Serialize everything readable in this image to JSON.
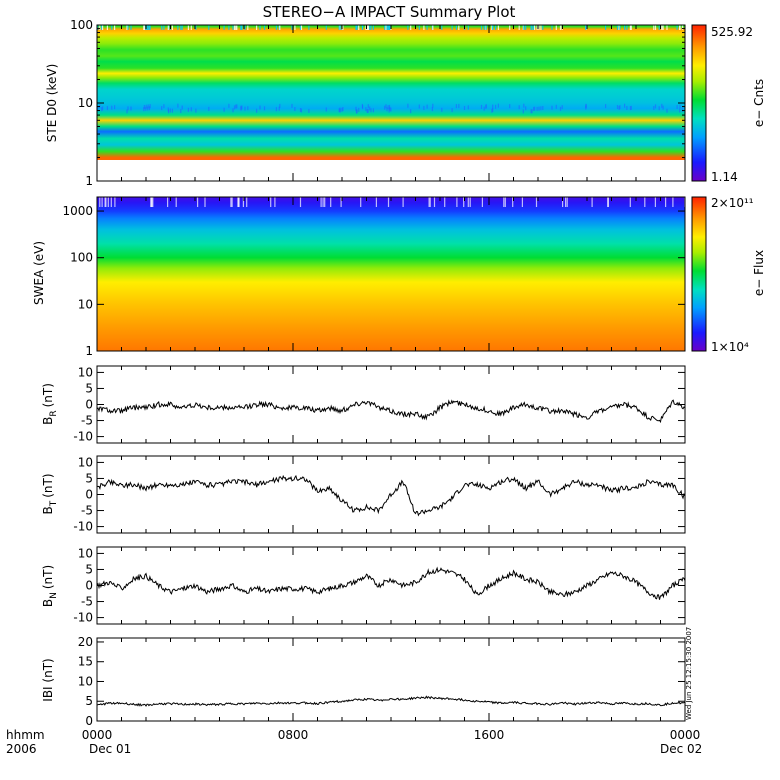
{
  "chart_data": {
    "type": "line",
    "title": "STEREO−A IMPACT Summary Plot",
    "x": {
      "unit": "hours since 2006 Dec 01 00:00",
      "range": [
        0,
        24
      ],
      "ticks": [
        0,
        8,
        16,
        24
      ],
      "tick_labels": [
        "0000",
        "0800",
        "1600",
        "0000"
      ],
      "date_labels": [
        "Dec 01",
        "Dec 02"
      ],
      "corner_labels": [
        "hhmm",
        "2006"
      ]
    },
    "stamp": "Wed Jun 25 12:15:30 2007",
    "panels": [
      {
        "id": "ste",
        "type": "heatmap",
        "ylabel": "STE D0 (keV)",
        "yscale": "log",
        "ylim": [
          1,
          100
        ],
        "yticks": [
          1,
          10,
          100
        ],
        "ytick_labels": [
          "1",
          "10",
          "100"
        ],
        "colorbar": {
          "label": "e− Cnts",
          "max": "525.92",
          "min": "1.14"
        },
        "bands_keV": [
          {
            "energy": 2.0,
            "level": 0.92
          },
          {
            "energy": 2.4,
            "level": 0.55
          },
          {
            "energy": 2.9,
            "level": 0.35
          },
          {
            "energy": 3.5,
            "level": 0.42
          },
          {
            "energy": 4.3,
            "level": 0.22
          },
          {
            "energy": 5.0,
            "level": 0.45
          },
          {
            "energy": 6.0,
            "level": 0.78
          },
          {
            "energy": 7.0,
            "level": 0.45
          },
          {
            "energy": 8.5,
            "level": 0.3
          },
          {
            "energy": 10.0,
            "level": 0.34
          },
          {
            "energy": 12.0,
            "level": 0.36
          },
          {
            "energy": 15.0,
            "level": 0.38
          },
          {
            "energy": 18.0,
            "level": 0.48
          },
          {
            "energy": 21.0,
            "level": 0.62
          },
          {
            "energy": 24.0,
            "level": 0.74
          },
          {
            "energy": 28.0,
            "level": 0.55
          },
          {
            "energy": 34.0,
            "level": 0.5
          },
          {
            "energy": 40.0,
            "level": 0.58
          },
          {
            "energy": 48.0,
            "level": 0.55
          },
          {
            "energy": 58.0,
            "level": 0.62
          },
          {
            "energy": 68.0,
            "level": 0.66
          },
          {
            "energy": 78.0,
            "level": 0.78
          },
          {
            "energy": 88.0,
            "level": 0.84
          },
          {
            "energy": 96.0,
            "level": 0.55
          }
        ]
      },
      {
        "id": "swea",
        "type": "heatmap",
        "ylabel": "SWEA (eV)",
        "yscale": "log",
        "ylim": [
          1,
          2000
        ],
        "yticks": [
          1,
          10,
          100,
          1000
        ],
        "ytick_labels": [
          "1",
          "10",
          "100",
          "1000"
        ],
        "colorbar": {
          "label": "e− Flux",
          "max": "2×10¹¹",
          "min": "1×10⁴"
        },
        "profile_eV": [
          {
            "energy": 1,
            "level": 0.9
          },
          {
            "energy": 3,
            "level": 0.86
          },
          {
            "energy": 10,
            "level": 0.8
          },
          {
            "energy": 30,
            "level": 0.74
          },
          {
            "energy": 60,
            "level": 0.62
          },
          {
            "energy": 100,
            "level": 0.52
          },
          {
            "energy": 200,
            "level": 0.42
          },
          {
            "energy": 400,
            "level": 0.34
          },
          {
            "energy": 700,
            "level": 0.24
          },
          {
            "energy": 1000,
            "level": 0.16
          },
          {
            "energy": 1500,
            "level": 0.1
          },
          {
            "energy": 2000,
            "level": 0.06
          }
        ]
      },
      {
        "id": "br",
        "type": "line",
        "ylabel": "B",
        "ylabel_sub": "R",
        "ylabel_unit": "(nT)",
        "ylim": [
          -12,
          12
        ],
        "yticks": [
          10,
          5,
          0,
          -5,
          -10
        ],
        "series": [
          {
            "x": [
              0,
              0.5,
              1,
              1.5,
              2,
              2.5,
              3,
              3.5,
              4,
              4.5,
              5,
              5.5,
              6,
              6.5,
              7,
              7.5,
              8,
              8.5,
              9,
              9.5,
              10,
              10.5,
              11,
              11.5,
              12,
              12.5,
              13,
              13.5,
              14,
              14.5,
              15,
              15.5,
              16,
              16.5,
              17,
              17.5,
              18,
              18.5,
              19,
              19.5,
              20,
              20.5,
              21,
              21.5,
              22,
              22.5,
              23,
              23.5,
              24
            ],
            "y": [
              -1,
              -2,
              -2,
              -1,
              -1,
              0,
              0,
              -1,
              0,
              -1,
              -1,
              -1,
              -1,
              0,
              0,
              -1,
              -1,
              -1,
              -2,
              -1,
              -2,
              0,
              1,
              -1,
              -2,
              -3,
              -3,
              -4,
              -1,
              1,
              0,
              -1,
              -2,
              -3,
              -1,
              0,
              -1,
              -2,
              -2,
              -3,
              -4,
              -2,
              -1,
              0,
              -1,
              -4,
              -5,
              1,
              -1
            ]
          }
        ]
      },
      {
        "id": "bt",
        "type": "line",
        "ylabel": "B",
        "ylabel_sub": "T",
        "ylabel_unit": "(nT)",
        "ylim": [
          -12,
          12
        ],
        "yticks": [
          10,
          5,
          0,
          -5,
          -10
        ],
        "series": [
          {
            "x": [
              0,
              0.5,
              1,
              1.5,
              2,
              2.5,
              3,
              3.5,
              4,
              4.5,
              5,
              5.5,
              6,
              6.5,
              7,
              7.5,
              8,
              8.5,
              9,
              9.5,
              10,
              10.5,
              11,
              11.5,
              12,
              12.5,
              13,
              13.5,
              14,
              14.5,
              15,
              15.5,
              16,
              16.5,
              17,
              17.5,
              18,
              18.5,
              19,
              19.5,
              20,
              20.5,
              21,
              21.5,
              22,
              22.5,
              23,
              23.5,
              24
            ],
            "y": [
              2,
              4,
              3,
              3,
              2,
              3,
              3,
              3,
              4,
              3,
              3,
              4,
              4,
              3,
              4,
              5,
              5,
              5,
              1,
              2,
              -2,
              -5,
              -4,
              -5,
              0,
              4,
              -6,
              -5,
              -4,
              -1,
              3,
              3,
              2,
              4,
              5,
              2,
              4,
              0,
              2,
              4,
              3,
              3,
              1,
              2,
              2,
              4,
              3,
              3,
              -1
            ]
          }
        ]
      },
      {
        "id": "bn",
        "type": "line",
        "ylabel": "B",
        "ylabel_sub": "N",
        "ylabel_unit": "(nT)",
        "ylim": [
          -12,
          12
        ],
        "yticks": [
          10,
          5,
          0,
          -5,
          -10
        ],
        "series": [
          {
            "x": [
              0,
              0.5,
              1,
              1.5,
              2,
              2.5,
              3,
              3.5,
              4,
              4.5,
              5,
              5.5,
              6,
              6.5,
              7,
              7.5,
              8,
              8.5,
              9,
              9.5,
              10,
              10.5,
              11,
              11.5,
              12,
              12.5,
              13,
              13.5,
              14,
              14.5,
              15,
              15.5,
              16,
              16.5,
              17,
              17.5,
              18,
              18.5,
              19,
              19.5,
              20,
              20.5,
              21,
              21.5,
              22,
              22.5,
              23,
              23.5,
              24
            ],
            "y": [
              0,
              1,
              -1,
              2,
              3,
              0,
              -2,
              -1,
              0,
              -2,
              -1,
              0,
              -2,
              -1,
              -2,
              -1,
              -1,
              -1,
              -2,
              -1,
              0,
              1,
              3,
              0,
              2,
              0,
              1,
              4,
              5,
              4,
              2,
              -3,
              0,
              2,
              4,
              2,
              1,
              -2,
              -3,
              -2,
              0,
              2,
              4,
              3,
              1,
              -2,
              -4,
              0,
              2
            ]
          }
        ]
      },
      {
        "id": "bmag",
        "type": "line",
        "ylabel": "IBI (nT)",
        "ylim": [
          0,
          21
        ],
        "yticks": [
          20,
          15,
          10,
          5,
          0
        ],
        "series": [
          {
            "x": [
              0,
              0.5,
              1,
              1.5,
              2,
              2.5,
              3,
              3.5,
              4,
              4.5,
              5,
              5.5,
              6,
              6.5,
              7,
              7.5,
              8,
              8.5,
              9,
              9.5,
              10,
              10.5,
              11,
              11.5,
              12,
              12.5,
              13,
              13.5,
              14,
              14.5,
              15,
              15.5,
              16,
              16.5,
              17,
              17.5,
              18,
              18.5,
              19,
              19.5,
              20,
              20.5,
              21,
              21.5,
              22,
              22.5,
              23,
              23.5,
              24
            ],
            "y": [
              4,
              4.5,
              4.5,
              4.2,
              4,
              4.3,
              4.4,
              4.2,
              4.3,
              4.1,
              4.2,
              4.4,
              4.3,
              4.5,
              4.4,
              4.6,
              4.5,
              4.6,
              4.4,
              4.8,
              5,
              5.3,
              5.5,
              5.2,
              5.6,
              5.5,
              5.8,
              6,
              5.7,
              5.6,
              5.3,
              5,
              4.8,
              4.5,
              4.7,
              4.5,
              4.4,
              4.2,
              4.6,
              4.3,
              4.5,
              4.7,
              4.3,
              4.5,
              4.3,
              4.4,
              4,
              4.6,
              4.5
            ]
          }
        ]
      }
    ]
  }
}
